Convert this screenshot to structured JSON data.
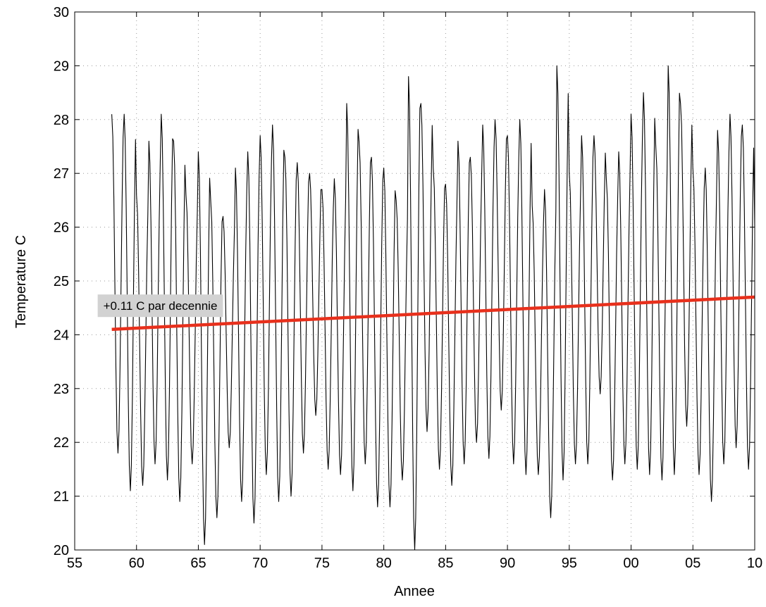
{
  "chart_data": {
    "type": "line",
    "title": "",
    "xlabel": "Annee",
    "ylabel": "Temperature  C",
    "xlim": [
      1955,
      2010
    ],
    "ylim": [
      20,
      30
    ],
    "grid": true,
    "x_ticks": [
      1955,
      1960,
      1965,
      1970,
      1975,
      1980,
      1985,
      1990,
      1995,
      2000,
      2005,
      2010
    ],
    "x_tick_labels": [
      "55",
      "60",
      "65",
      "70",
      "75",
      "80",
      "85",
      "90",
      "95",
      "00",
      "05",
      "10"
    ],
    "y_ticks": [
      20,
      21,
      22,
      23,
      24,
      25,
      26,
      27,
      28,
      29,
      30
    ],
    "y_tick_labels": [
      "20",
      "21",
      "22",
      "23",
      "24",
      "25",
      "26",
      "27",
      "28",
      "29",
      "30"
    ],
    "series": [
      {
        "kind": "monthly-temperature",
        "color": "#000000",
        "start_year": 1958.0,
        "step_years": 0.08333,
        "annual_peak_lag_years": 0.0,
        "yearly_max": [
          28.1,
          28.1,
          26.6,
          27.6,
          28.1,
          27.6,
          26.6,
          27.4,
          26.5,
          26.2,
          27.1,
          27.4,
          27.7,
          27.9,
          27.3,
          27.2,
          27.0,
          26.7,
          26.9,
          28.3,
          27.6,
          27.3,
          27.1,
          26.5,
          28.8,
          28.3,
          27.1,
          26.8,
          27.6,
          27.3,
          27.9,
          28.0,
          27.7,
          28.0,
          26.4,
          26.7,
          29.0,
          27.0,
          27.7,
          27.7,
          26.9,
          27.4,
          28.1,
          28.5,
          27.5,
          29.0,
          28.3,
          27.1,
          27.1,
          27.8,
          28.1,
          27.9
        ],
        "yearly_min": [
          21.8,
          21.1,
          21.2,
          21.6,
          21.3,
          20.9,
          21.6,
          20.1,
          20.6,
          21.9,
          20.9,
          20.5,
          21.4,
          20.9,
          21.0,
          21.8,
          22.5,
          21.5,
          21.4,
          21.1,
          21.6,
          20.8,
          20.8,
          21.3,
          20.0,
          22.2,
          21.5,
          21.2,
          21.6,
          22.0,
          21.7,
          22.6,
          21.6,
          21.4,
          21.4,
          20.6,
          21.3,
          21.6,
          21.6,
          22.9,
          21.3,
          21.6,
          21.5,
          21.4,
          21.3,
          21.4,
          22.3,
          21.4,
          20.9,
          21.6,
          21.9,
          21.5
        ]
      },
      {
        "name": "trend",
        "color": "#e8301c",
        "x": [
          1958,
          2010
        ],
        "y": [
          24.1,
          24.7
        ]
      }
    ],
    "annotations": [
      {
        "text": "+0.11 C par decennie",
        "x": 1958,
        "y": 24.5
      }
    ]
  }
}
